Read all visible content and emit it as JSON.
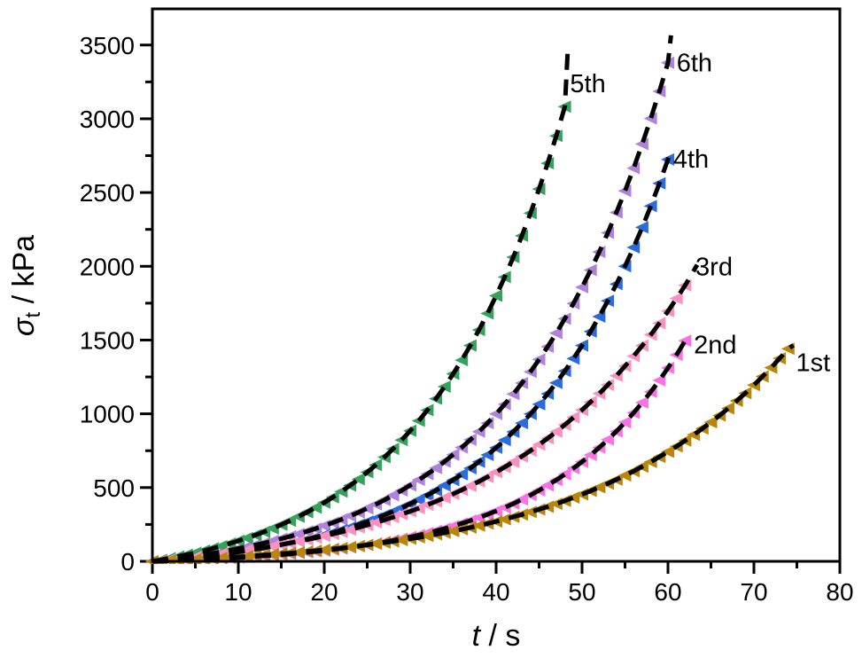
{
  "figure": {
    "background": "#ffffff",
    "frame_color": "#000000",
    "tick_color": "#000000",
    "text_color": "#000000"
  },
  "chart_data": {
    "type": "scatter",
    "title": "",
    "xlabel_parts": {
      "symbol": "t",
      "rest": " / s"
    },
    "ylabel_parts": {
      "symbol": "σ",
      "sub": "t",
      "rest": " / kPa"
    },
    "xlim": [
      0,
      80
    ],
    "ylim": [
      0,
      3745
    ],
    "x_major_ticks": [
      0,
      10,
      20,
      30,
      40,
      50,
      60,
      70,
      80
    ],
    "x_minor_ticks": [
      5,
      15,
      25,
      35,
      45,
      55,
      65,
      75
    ],
    "y_major_ticks": [
      0,
      500,
      1000,
      1500,
      2000,
      2500,
      3000,
      3500
    ],
    "y_minor_ticks": [
      250,
      750,
      1250,
      1750,
      2250,
      2750,
      3250
    ],
    "grid": false,
    "legend": "inline-labels",
    "marker": {
      "shape": "left-triangle",
      "size": 15
    },
    "fit_style": {
      "color": "#000000",
      "dash": [
        18,
        11
      ],
      "width": 5
    },
    "render_order": [
      "6th",
      "5th",
      "4th",
      "3rd",
      "2nd",
      "1st"
    ],
    "series": [
      {
        "name": "1st",
        "color": "#B8860B",
        "t_start": 0,
        "t_step": 1,
        "values": [
          0,
          2,
          5,
          8,
          11,
          13,
          17,
          20,
          23,
          27,
          30,
          34,
          38,
          43,
          47,
          52,
          56,
          61,
          67,
          72,
          78,
          84,
          90,
          97,
          104,
          111,
          119,
          127,
          135,
          144,
          153,
          162,
          172,
          183,
          194,
          205,
          217,
          229,
          242,
          256,
          270,
          285,
          301,
          317,
          334,
          352,
          370,
          390,
          410,
          432,
          454,
          477,
          502,
          527,
          554,
          582,
          611,
          642,
          674,
          708,
          743,
          779,
          818,
          858,
          900,
          943,
          989,
          1037,
          1088,
          1140,
          1195,
          1253,
          1313,
          1376,
          1441
        ],
        "fit_extension": [
          [
            74.6,
            1465
          ]
        ],
        "label": {
          "text": "1st",
          "t": 74.9,
          "v": 1350
        }
      },
      {
        "name": "2nd",
        "color": "#F972E3",
        "t_start": 0,
        "t_step": 1,
        "values": [
          0,
          2,
          4,
          6,
          8,
          11,
          13,
          16,
          19,
          22,
          25,
          29,
          33,
          37,
          41,
          45,
          50,
          56,
          61,
          67,
          73,
          80,
          87,
          95,
          103,
          112,
          121,
          131,
          142,
          153,
          165,
          178,
          192,
          207,
          222,
          239,
          257,
          276,
          296,
          318,
          341,
          365,
          391,
          419,
          449,
          481,
          515,
          551,
          590,
          631,
          675,
          721,
          771,
          825,
          881,
          942,
          1007,
          1076,
          1149,
          1227,
          1311,
          1400,
          1495
        ],
        "fit_extension": [
          [
            62.3,
            1530
          ]
        ],
        "label": {
          "text": "2nd",
          "t": 63.0,
          "v": 1470
        }
      },
      {
        "name": "3rd",
        "color": "#F991C1",
        "t_start": 0,
        "t_step": 1,
        "values": [
          0,
          5,
          11,
          17,
          23,
          29,
          36,
          43,
          50,
          58,
          66,
          75,
          84,
          93,
          103,
          113,
          124,
          135,
          147,
          159,
          172,
          185,
          199,
          214,
          229,
          246,
          263,
          280,
          299,
          319,
          339,
          360,
          383,
          406,
          431,
          457,
          484,
          512,
          541,
          572,
          605,
          639,
          674,
          711,
          750,
          791,
          834,
          879,
          926,
          975,
          1026,
          1080,
          1137,
          1196,
          1258,
          1323,
          1391,
          1462,
          1536,
          1614,
          1696,
          1782,
          1871
        ],
        "fit_extension": [
          [
            63.4,
            2010
          ]
        ],
        "label": {
          "text": "3rd",
          "t": 63.2,
          "v": 2000
        }
      },
      {
        "name": "4th",
        "color": "#2B6BDB",
        "t_start": 0,
        "t_step": 1,
        "values": [
          0,
          5,
          10,
          15,
          21,
          27,
          34,
          40,
          48,
          55,
          64,
          72,
          82,
          91,
          102,
          113,
          125,
          137,
          150,
          164,
          179,
          195,
          212,
          230,
          249,
          269,
          290,
          313,
          337,
          362,
          389,
          418,
          448,
          481,
          515,
          551,
          590,
          631,
          675,
          721,
          770,
          822,
          878,
          937,
          999,
          1065,
          1136,
          1210,
          1290,
          1374,
          1463,
          1558,
          1659,
          1766,
          1879,
          2000,
          2128,
          2264,
          2408,
          2562,
          2724
        ],
        "fit_extension": [
          [
            60.3,
            2800
          ]
        ],
        "label": {
          "text": "4th",
          "t": 60.6,
          "v": 2730
        }
      },
      {
        "name": "5th",
        "color": "#37A15E",
        "t_start": 0,
        "t_step": 1,
        "values": [
          0,
          10,
          21,
          33,
          45,
          58,
          73,
          88,
          103,
          120,
          139,
          158,
          178,
          200,
          223,
          248,
          275,
          303,
          333,
          364,
          398,
          434,
          473,
          514,
          557,
          604,
          653,
          706,
          762,
          822,
          885,
          953,
          1025,
          1102,
          1184,
          1271,
          1364,
          1463,
          1568,
          1680,
          1800,
          1927,
          2062,
          2207,
          2360,
          2524,
          2698,
          2884,
          3082
        ],
        "fit_extension": [
          [
            48.35,
            3480
          ]
        ],
        "label": {
          "text": "5th",
          "t": 48.6,
          "v": 3240
        }
      },
      {
        "name": "6th",
        "color": "#AF82DB",
        "t_start": 0,
        "t_step": 1,
        "values": [
          0,
          7,
          14,
          21,
          29,
          37,
          46,
          55,
          65,
          76,
          87,
          99,
          111,
          124,
          138,
          153,
          169,
          185,
          203,
          222,
          241,
          262,
          284,
          308,
          332,
          359,
          386,
          416,
          447,
          480,
          515,
          552,
          591,
          632,
          676,
          723,
          772,
          824,
          879,
          937,
          999,
          1065,
          1134,
          1208,
          1285,
          1368,
          1455,
          1547,
          1645,
          1748,
          1858,
          1974,
          2097,
          2227,
          2365,
          2511,
          2665,
          2829,
          3002,
          3186,
          3380
        ],
        "fit_extension": [
          [
            60.35,
            3565
          ]
        ],
        "label": {
          "text": "6th",
          "t": 61.0,
          "v": 3380
        }
      }
    ]
  }
}
